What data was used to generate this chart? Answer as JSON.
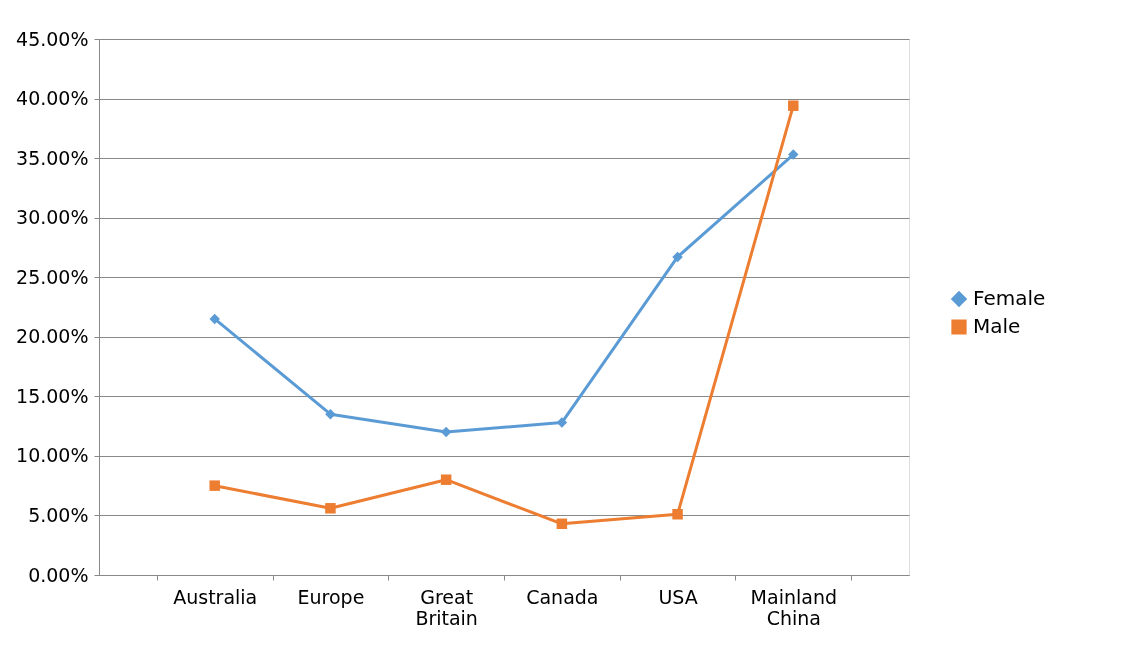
{
  "chart_data": {
    "type": "line",
    "categories": [
      "Australia",
      "Europe",
      "Great Britain",
      "Canada",
      "USA",
      "Mainland China"
    ],
    "series": [
      {
        "name": "Female",
        "color": "#5b9bd5",
        "marker": "diamond",
        "values": [
          21.5,
          13.5,
          12.0,
          12.8,
          26.7,
          35.3
        ]
      },
      {
        "name": "Male",
        "color": "#ed7d31",
        "marker": "square",
        "values": [
          7.5,
          5.6,
          8.0,
          4.3,
          5.1,
          39.4
        ]
      }
    ],
    "ylim": [
      0,
      45
    ],
    "yticks": [
      {
        "value": 0,
        "label": "0.00%"
      },
      {
        "value": 5,
        "label": "5.00%"
      },
      {
        "value": 10,
        "label": "10.00%"
      },
      {
        "value": 15,
        "label": "15.00%"
      },
      {
        "value": 20,
        "label": "20.00%"
      },
      {
        "value": 25,
        "label": "25.00%"
      },
      {
        "value": 30,
        "label": "30.00%"
      },
      {
        "value": 35,
        "label": "35.00%"
      },
      {
        "value": 40,
        "label": "40.00%"
      },
      {
        "value": 45,
        "label": "45.00%"
      }
    ],
    "grid": "y",
    "legend": "right"
  }
}
